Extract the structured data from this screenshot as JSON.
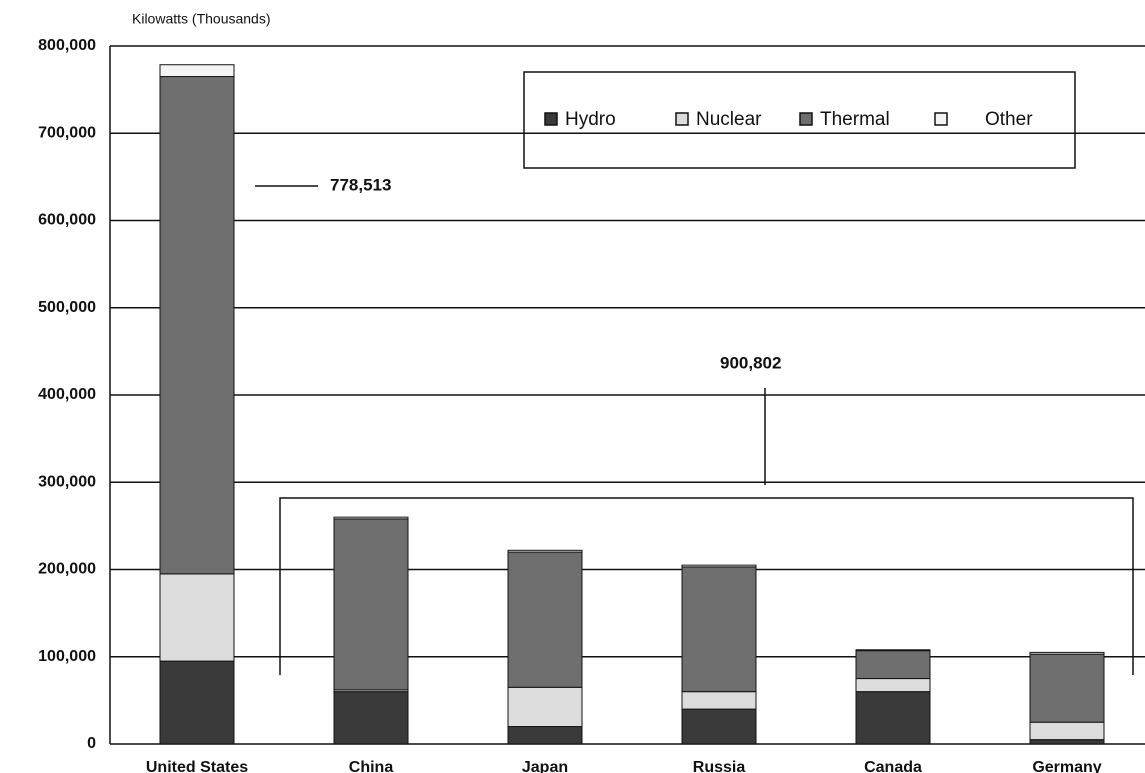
{
  "chart_data": {
    "type": "stacked_bar",
    "y_label": "Kilowatts (Thousands)",
    "categories": [
      "United States",
      "China",
      "Japan",
      "Russia",
      "Canada",
      "Germany"
    ],
    "series": [
      {
        "name": "Hydro",
        "color": "#3a3a3a",
        "values": [
          95000,
          60000,
          20000,
          40000,
          60000,
          5000
        ]
      },
      {
        "name": "Nuclear",
        "color": "#dcdcdc",
        "values": [
          100000,
          2000,
          45000,
          20000,
          15000,
          20000
        ]
      },
      {
        "name": "Thermal",
        "color": "#6e6e6e",
        "values": [
          570000,
          196000,
          155000,
          143000,
          32000,
          78000
        ]
      },
      {
        "name": "Other",
        "color": "#f4f4f4",
        "values": [
          13513,
          2000,
          2000,
          2000,
          1000,
          2000
        ]
      }
    ],
    "ylim": [
      0,
      800000
    ],
    "yticks": [
      0,
      {
        "value": 100000,
        "label": "100,000"
      },
      {
        "value": 200000,
        "label": "200,000"
      },
      {
        "value": 300000,
        "label": "300,000"
      },
      {
        "value": 400000,
        "label": "400,000"
      },
      {
        "value": 500000,
        "label": "500,000"
      },
      {
        "value": 600000,
        "label": "600,000"
      },
      {
        "value": 700000,
        "label": "700,000"
      },
      {
        "value": 800000,
        "label": "800,000"
      }
    ],
    "grid": true,
    "legend": "top-right",
    "annotations": [
      "778,513",
      "900,802"
    ]
  }
}
